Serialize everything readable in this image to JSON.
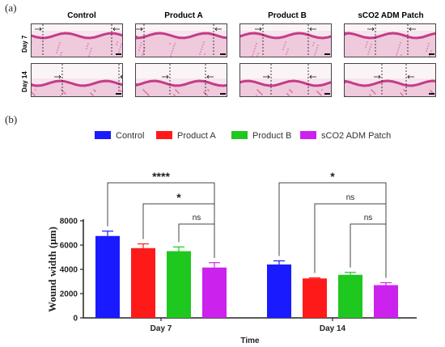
{
  "panel_a": {
    "label": "(a)",
    "columns": [
      "Control",
      "Product A",
      "Product B",
      "sCO2 ADM Patch"
    ],
    "rows": [
      "Day 7",
      "Day 14"
    ]
  },
  "panel_b": {
    "label": "(b)"
  },
  "chart_data": {
    "type": "bar",
    "categories": [
      "Day 7",
      "Day 14"
    ],
    "series": [
      {
        "name": "Control",
        "color": "#1a1aff",
        "values": [
          6750,
          4400
        ],
        "errors": [
          400,
          300
        ]
      },
      {
        "name": "Product A",
        "color": "#ff1a1a",
        "values": [
          5750,
          3250
        ],
        "errors": [
          350,
          50
        ]
      },
      {
        "name": "Product B",
        "color": "#1ec81e",
        "values": [
          5500,
          3550
        ],
        "errors": [
          350,
          200
        ]
      },
      {
        "name": "sCO2 ADM Patch",
        "color": "#cc22ee",
        "values": [
          4150,
          2700
        ],
        "errors": [
          400,
          200
        ]
      }
    ],
    "xlabel": "Time",
    "ylabel": "Wound width (μm)",
    "ylim": [
      0,
      8000
    ],
    "yticks": [
      0,
      2000,
      4000,
      6000,
      8000
    ],
    "legend_position": "top",
    "significance": [
      {
        "group": "Day 7",
        "from": "Control",
        "to": "sCO2 ADM Patch",
        "label": "****"
      },
      {
        "group": "Day 7",
        "from": "Product A",
        "to": "sCO2 ADM Patch",
        "label": "*"
      },
      {
        "group": "Day 7",
        "from": "Product B",
        "to": "sCO2 ADM Patch",
        "label": "ns"
      },
      {
        "group": "Day 14",
        "from": "Control",
        "to": "sCO2 ADM Patch",
        "label": "*"
      },
      {
        "group": "Day 14",
        "from": "Product A",
        "to": "sCO2 ADM Patch",
        "label": "ns"
      },
      {
        "group": "Day 14",
        "from": "Product B",
        "to": "sCO2 ADM Patch",
        "label": "ns"
      }
    ]
  }
}
